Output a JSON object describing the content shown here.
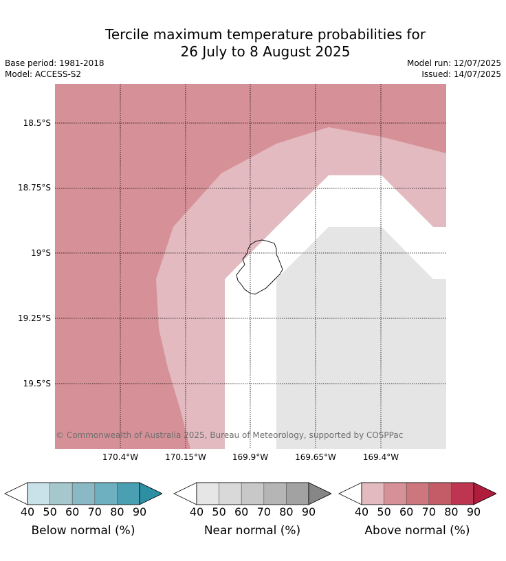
{
  "header": {
    "title_line1": "Tercile maximum temperature probabilities for",
    "title_line2": "26 July to 8 August 2025",
    "base_period": "Base period: 1981-2018",
    "model": "Model: ACCESS-S2",
    "model_run": "Model run: 12/07/2025",
    "issued": "Issued: 14/07/2025"
  },
  "map": {
    "latitude_labels": [
      "18.5°S",
      "18.75°S",
      "19°S",
      "19.25°S",
      "19.5°S"
    ],
    "longitude_labels": [
      "170.4°W",
      "170.15°W",
      "169.9°W",
      "169.65°W",
      "169.4°W"
    ],
    "copyright": "© Commonwealth of Australia 2025, Bureau of Meteorology, supported by COSPPac",
    "colors": {
      "above_50_60": "#d69198",
      "above_40_50": "#e2babf",
      "near_40_50": "#e5e5e5",
      "no_category": "#ffffff",
      "coastline": "#000000",
      "gridline": "#000000"
    }
  },
  "legends": [
    {
      "label": "Below normal (%)",
      "ticks": [
        "40",
        "50",
        "60",
        "70",
        "80",
        "90"
      ],
      "colors": [
        "#c9e2e9",
        "#a6c8cd",
        "#8ab8c4",
        "#6eb0bf",
        "#4a9fb2",
        "#2c8fa4"
      ]
    },
    {
      "label": "Near normal (%)",
      "ticks": [
        "40",
        "50",
        "60",
        "70",
        "80",
        "90"
      ],
      "colors": [
        "#e6e6e6",
        "#d9d9d9",
        "#c8c8c8",
        "#b5b5b5",
        "#a2a2a2",
        "#868686"
      ]
    },
    {
      "label": "Above normal (%)",
      "ticks": [
        "40",
        "50",
        "60",
        "70",
        "80",
        "90"
      ],
      "colors": [
        "#e2babf",
        "#d69198",
        "#cd767e",
        "#c45c67",
        "#bd3550",
        "#b01c3c"
      ]
    }
  ]
}
